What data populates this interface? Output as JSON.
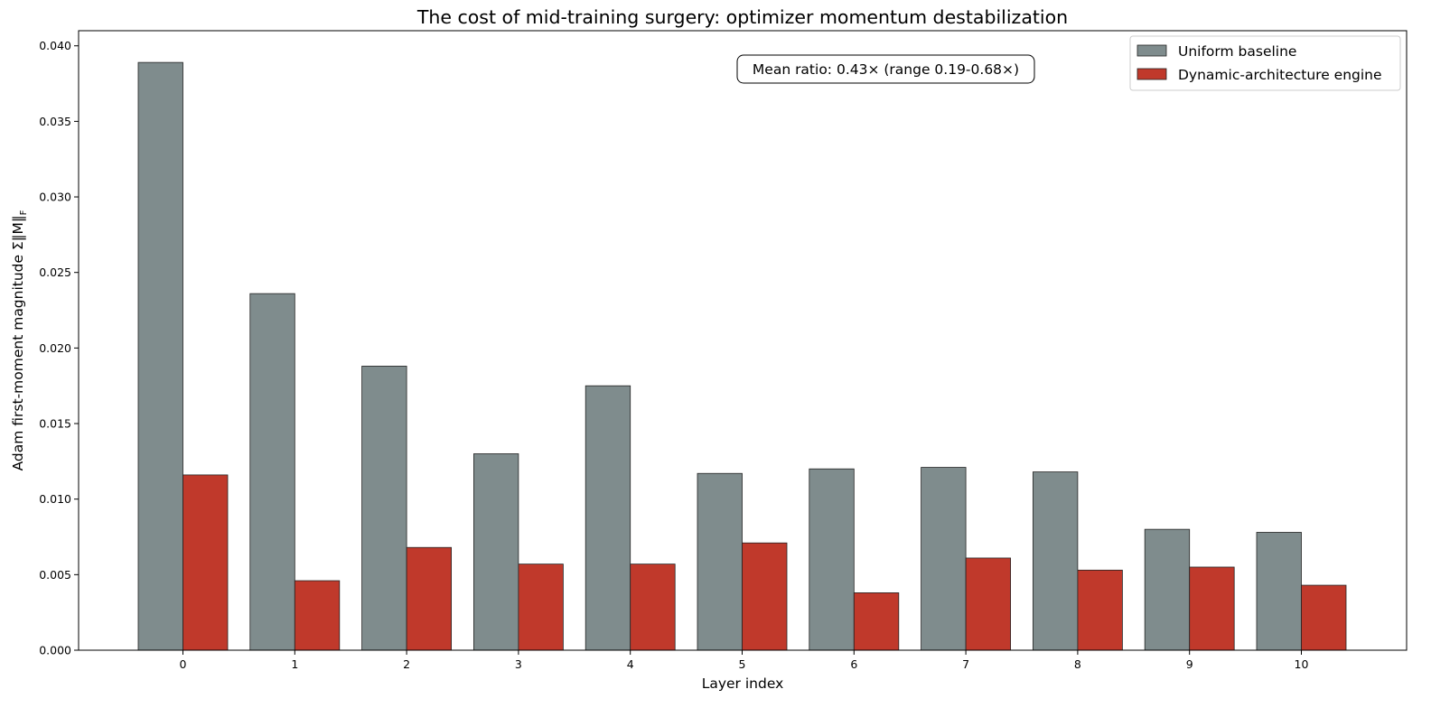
{
  "chart_data": {
    "type": "bar",
    "title": "The cost of mid-training surgery: optimizer momentum destabilization",
    "xlabel": "Layer index",
    "ylabel": "Adam first-moment magnitude  Σ‖M‖",
    "ylabel_subscript": "F",
    "categories": [
      "0",
      "1",
      "2",
      "3",
      "4",
      "5",
      "6",
      "7",
      "8",
      "9",
      "10"
    ],
    "ylim": [
      0,
      0.041
    ],
    "yticks": [
      "0.000",
      "0.005",
      "0.010",
      "0.015",
      "0.020",
      "0.025",
      "0.030",
      "0.035",
      "0.040"
    ],
    "grid": false,
    "legend_position": "top-right",
    "series": [
      {
        "name": "Uniform baseline",
        "color": "#7f8c8d",
        "values": [
          0.0389,
          0.0236,
          0.0188,
          0.013,
          0.0175,
          0.0117,
          0.012,
          0.0121,
          0.0118,
          0.008,
          0.0078
        ]
      },
      {
        "name": "Dynamic-architecture engine",
        "color": "#c0392b",
        "values": [
          0.0116,
          0.0046,
          0.0068,
          0.0057,
          0.0057,
          0.0071,
          0.0038,
          0.0061,
          0.0053,
          0.0055,
          0.0043
        ]
      }
    ],
    "annotation": "Mean ratio: 0.43×  (range 0.19-0.68×)"
  }
}
